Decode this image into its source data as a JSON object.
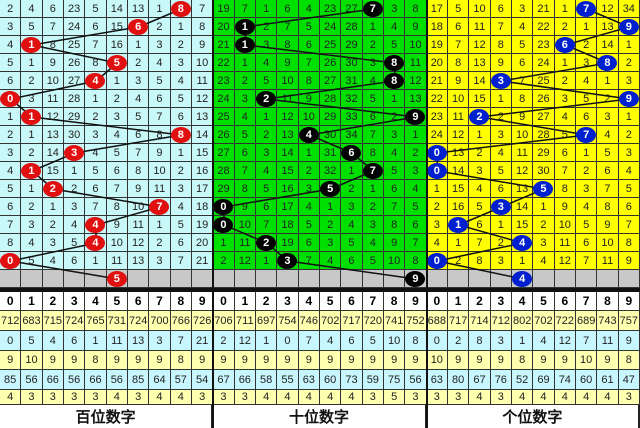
{
  "panels": [
    {
      "label": "百位数字",
      "bg": "#c8f8f8",
      "ball": "#e01010",
      "rows": [
        [
          2,
          4,
          6,
          23,
          5,
          14,
          13,
          1,
          8,
          7
        ],
        [
          3,
          5,
          7,
          24,
          6,
          15,
          6,
          2,
          1,
          8
        ],
        [
          4,
          1,
          8,
          25,
          7,
          16,
          1,
          3,
          2,
          9
        ],
        [
          5,
          1,
          9,
          26,
          8,
          5,
          2,
          4,
          3,
          10
        ],
        [
          6,
          2,
          10,
          27,
          4,
          1,
          3,
          5,
          4,
          11
        ],
        [
          0,
          3,
          11,
          28,
          1,
          2,
          4,
          6,
          5,
          12
        ],
        [
          1,
          1,
          12,
          29,
          2,
          3,
          5,
          7,
          6,
          13
        ],
        [
          2,
          1,
          13,
          30,
          3,
          4,
          6,
          8,
          8,
          14
        ],
        [
          3,
          2,
          14,
          3,
          4,
          5,
          7,
          9,
          1,
          15
        ],
        [
          4,
          1,
          15,
          1,
          5,
          6,
          8,
          10,
          2,
          16
        ],
        [
          5,
          1,
          2,
          2,
          6,
          7,
          9,
          11,
          3,
          17
        ],
        [
          6,
          2,
          1,
          3,
          7,
          8,
          10,
          7,
          4,
          18
        ],
        [
          7,
          3,
          2,
          4,
          4,
          9,
          11,
          1,
          5,
          19
        ],
        [
          8,
          4,
          3,
          5,
          4,
          10,
          12,
          2,
          6,
          20
        ],
        [
          0,
          5,
          4,
          6,
          1,
          11,
          13,
          3,
          7,
          21
        ]
      ],
      "hits": [
        8,
        6,
        1,
        5,
        4,
        0,
        1,
        8,
        3,
        1,
        2,
        7,
        4,
        4,
        0,
        5
      ],
      "stats": [
        [
          712,
          683,
          715,
          724,
          765,
          731,
          724,
          700,
          766,
          726
        ],
        [
          0,
          5,
          4,
          6,
          1,
          11,
          13,
          3,
          7,
          21
        ],
        [
          9,
          10,
          9,
          9,
          8,
          9,
          9,
          9,
          8,
          9
        ],
        [
          85,
          56,
          66,
          56,
          66,
          56,
          85,
          64,
          57,
          54
        ],
        [
          4,
          3,
          3,
          3,
          3,
          4,
          3,
          4,
          4,
          3
        ]
      ]
    },
    {
      "label": "十位数字",
      "bg": "#00e000",
      "ball": "#000000",
      "rows": [
        [
          19,
          7,
          1,
          6,
          4,
          23,
          27,
          7,
          3,
          8
        ],
        [
          20,
          1,
          2,
          7,
          5,
          24,
          28,
          1,
          4,
          9
        ],
        [
          21,
          1,
          3,
          8,
          6,
          25,
          29,
          2,
          5,
          10
        ],
        [
          22,
          1,
          4,
          9,
          7,
          26,
          30,
          3,
          8,
          11
        ],
        [
          23,
          2,
          5,
          10,
          8,
          27,
          31,
          4,
          8,
          12
        ],
        [
          24,
          3,
          2,
          11,
          9,
          28,
          32,
          5,
          1,
          13
        ],
        [
          25,
          4,
          1,
          12,
          10,
          29,
          33,
          6,
          2,
          9
        ],
        [
          26,
          5,
          2,
          13,
          4,
          30,
          34,
          7,
          3,
          1
        ],
        [
          27,
          6,
          3,
          14,
          1,
          31,
          6,
          8,
          4,
          2
        ],
        [
          28,
          7,
          4,
          15,
          2,
          32,
          1,
          7,
          5,
          3
        ],
        [
          29,
          8,
          5,
          16,
          3,
          5,
          2,
          1,
          6,
          4
        ],
        [
          0,
          9,
          6,
          17,
          4,
          1,
          3,
          2,
          7,
          5
        ],
        [
          0,
          10,
          7,
          18,
          5,
          2,
          4,
          3,
          8,
          6
        ],
        [
          1,
          11,
          2,
          19,
          6,
          3,
          5,
          4,
          9,
          7
        ],
        [
          2,
          12,
          1,
          3,
          7,
          4,
          6,
          5,
          10,
          8
        ]
      ],
      "hits": [
        7,
        1,
        1,
        8,
        8,
        2,
        9,
        4,
        6,
        7,
        5,
        0,
        0,
        2,
        3,
        9
      ],
      "stats": [
        [
          706,
          711,
          697,
          754,
          746,
          702,
          717,
          720,
          741,
          752
        ],
        [
          2,
          12,
          1,
          0,
          7,
          4,
          6,
          5,
          10,
          8
        ],
        [
          9,
          9,
          9,
          9,
          9,
          9,
          9,
          9,
          9,
          9
        ],
        [
          67,
          66,
          58,
          55,
          63,
          60,
          73,
          59,
          75,
          56
        ],
        [
          3,
          3,
          4,
          4,
          4,
          4,
          4,
          3,
          5,
          3
        ]
      ]
    },
    {
      "label": "个位数字",
      "bg": "#ffff00",
      "ball": "#0020d0",
      "rows": [
        [
          17,
          5,
          10,
          6,
          3,
          21,
          1,
          7,
          12,
          34
        ],
        [
          18,
          6,
          11,
          7,
          4,
          22,
          2,
          1,
          13,
          9
        ],
        [
          19,
          7,
          12,
          8,
          5,
          23,
          6,
          2,
          14,
          1
        ],
        [
          20,
          8,
          13,
          9,
          6,
          24,
          1,
          3,
          8,
          2
        ],
        [
          21,
          9,
          14,
          3,
          7,
          25,
          2,
          4,
          1,
          3
        ],
        [
          22,
          10,
          15,
          1,
          8,
          26,
          3,
          5,
          2,
          9
        ],
        [
          23,
          11,
          2,
          2,
          9,
          27,
          4,
          6,
          3,
          1
        ],
        [
          24,
          12,
          1,
          3,
          10,
          28,
          5,
          7,
          4,
          2
        ],
        [
          0,
          13,
          2,
          4,
          11,
          29,
          6,
          1,
          5,
          3
        ],
        [
          0,
          14,
          3,
          5,
          12,
          30,
          7,
          2,
          6,
          4
        ],
        [
          1,
          15,
          4,
          6,
          13,
          5,
          8,
          3,
          7,
          5
        ],
        [
          2,
          16,
          5,
          3,
          14,
          1,
          9,
          4,
          8,
          6
        ],
        [
          3,
          1,
          6,
          1,
          15,
          2,
          10,
          5,
          9,
          7
        ],
        [
          4,
          1,
          7,
          2,
          4,
          3,
          11,
          6,
          10,
          8
        ],
        [
          0,
          2,
          8,
          3,
          1,
          4,
          12,
          7,
          11,
          9
        ]
      ],
      "hits": [
        7,
        9,
        6,
        8,
        3,
        9,
        2,
        7,
        0,
        0,
        5,
        3,
        1,
        4,
        0,
        4
      ],
      "stats": [
        [
          688,
          717,
          714,
          712,
          802,
          702,
          722,
          689,
          743,
          757
        ],
        [
          0,
          2,
          8,
          3,
          1,
          4,
          12,
          7,
          11,
          9
        ],
        [
          10,
          9,
          9,
          9,
          8,
          9,
          9,
          10,
          9,
          8
        ],
        [
          63,
          80,
          67,
          76,
          52,
          69,
          74,
          60,
          61,
          47
        ],
        [
          3,
          3,
          4,
          3,
          4,
          4,
          4,
          4,
          4,
          3
        ]
      ]
    }
  ],
  "digits": [
    "0",
    "1",
    "2",
    "3",
    "4",
    "5",
    "6",
    "7",
    "8",
    "9"
  ]
}
